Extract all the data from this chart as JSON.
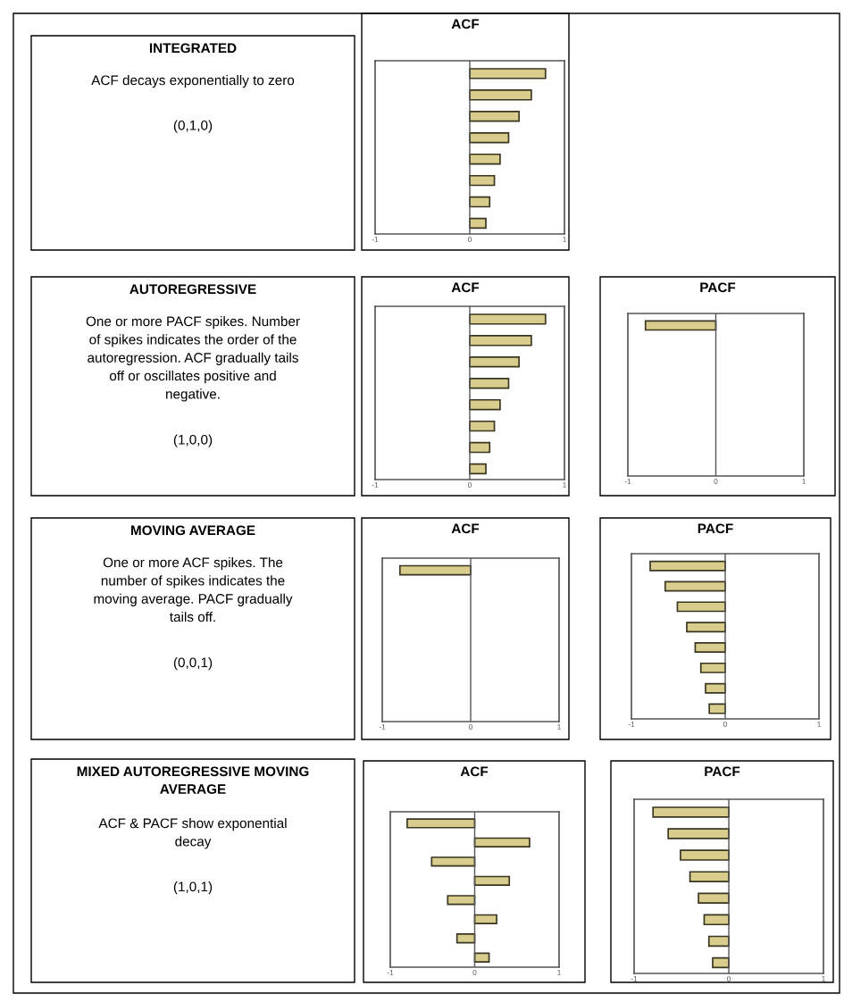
{
  "chart_data": [
    {
      "type": "other",
      "title": "INTEGRATED",
      "annotations": [
        "ACF decays exponentially to zero",
        "(0,1,0)"
      ]
    },
    {
      "type": "bar",
      "orientation": "horizontal",
      "title": "ACF",
      "categories": [
        null,
        null,
        null,
        null,
        null,
        null,
        null,
        null
      ],
      "values": [
        0.8,
        0.65,
        0.52,
        0.41,
        0.32,
        0.26,
        0.21,
        0.17
      ],
      "color": "#d8cd8c",
      "xlim": [
        -1,
        1
      ],
      "xticks": [
        -1,
        0,
        1
      ],
      "ref_lines": [
        {
          "axis": "x",
          "value": 0,
          "color": "#555555"
        }
      ],
      "grid": false
    },
    {
      "type": "other",
      "title": "AUTOREGRESSIVE",
      "annotations": [
        "One or more PACF spikes. Number\nof spikes indicates the order of the\nautoregression. ACF gradually tails\noff or oscillates positive and\nnegative.",
        "(1,0,0)"
      ]
    },
    {
      "type": "bar",
      "orientation": "horizontal",
      "title": "ACF",
      "categories": [
        null,
        null,
        null,
        null,
        null,
        null,
        null,
        null
      ],
      "values": [
        0.8,
        0.65,
        0.52,
        0.41,
        0.32,
        0.26,
        0.21,
        0.17
      ],
      "color": "#d8cd8c",
      "xlim": [
        -1,
        1
      ],
      "xticks": [
        -1,
        0,
        1
      ],
      "ref_lines": [
        {
          "axis": "x",
          "value": 0,
          "color": "#555555"
        }
      ],
      "grid": false
    },
    {
      "type": "bar",
      "orientation": "horizontal",
      "title": "PACF",
      "categories": [
        null,
        null,
        null,
        null,
        null,
        null,
        null,
        null
      ],
      "values": [
        -0.8,
        null,
        null,
        null,
        null,
        null,
        null,
        null
      ],
      "color": "#d8cd8c",
      "xlim": [
        -1,
        1
      ],
      "xticks": [
        -1,
        0,
        1
      ],
      "ref_lines": [
        {
          "axis": "x",
          "value": 0,
          "color": "#555555"
        }
      ],
      "grid": false
    },
    {
      "type": "other",
      "title": "MOVING AVERAGE",
      "annotations": [
        "One or more ACF spikes. The\nnumber of spikes indicates the\nmoving average. PACF gradually\ntails off.",
        "(0,0,1)"
      ]
    },
    {
      "type": "bar",
      "orientation": "horizontal",
      "title": "ACF",
      "categories": [
        null,
        null,
        null,
        null,
        null,
        null,
        null,
        null
      ],
      "values": [
        -0.8,
        null,
        null,
        null,
        null,
        null,
        null,
        null
      ],
      "color": "#d8cd8c",
      "xlim": [
        -1,
        1
      ],
      "xticks": [
        -1,
        0,
        1
      ],
      "ref_lines": [
        {
          "axis": "x",
          "value": 0,
          "color": "#555555"
        }
      ],
      "grid": false
    },
    {
      "type": "bar",
      "orientation": "horizontal",
      "title": "PACF",
      "categories": [
        null,
        null,
        null,
        null,
        null,
        null,
        null,
        null
      ],
      "values": [
        -0.8,
        -0.64,
        -0.51,
        -0.41,
        -0.32,
        -0.26,
        -0.21,
        -0.17
      ],
      "color": "#d8cd8c",
      "xlim": [
        -1,
        1
      ],
      "xticks": [
        -1,
        0,
        1
      ],
      "ref_lines": [
        {
          "axis": "x",
          "value": 0,
          "color": "#555555"
        }
      ],
      "grid": false
    },
    {
      "type": "other",
      "title": "MIXED AUTOREGRESSIVE MOVING\nAVERAGE",
      "annotations": [
        "ACF & PACF show exponential\ndecay",
        "(1,0,1)"
      ]
    },
    {
      "type": "bar",
      "orientation": "horizontal",
      "title": "ACF",
      "categories": [
        null,
        null,
        null,
        null,
        null,
        null,
        null,
        null
      ],
      "values": [
        -0.8,
        0.65,
        -0.51,
        0.41,
        -0.32,
        0.26,
        -0.21,
        0.17
      ],
      "color": "#d8cd8c",
      "xlim": [
        -1,
        1
      ],
      "xticks": [
        -1,
        0,
        1
      ],
      "ref_lines": [
        {
          "axis": "x",
          "value": 0,
          "color": "#555555"
        }
      ],
      "grid": false
    },
    {
      "type": "bar",
      "orientation": "horizontal",
      "title": "PACF",
      "categories": [
        null,
        null,
        null,
        null,
        null,
        null,
        null,
        null
      ],
      "values": [
        -0.8,
        -0.64,
        -0.51,
        -0.41,
        -0.32,
        -0.26,
        -0.21,
        -0.17
      ],
      "color": "#d8cd8c",
      "xlim": [
        -1,
        1
      ],
      "xticks": [
        -1,
        0,
        1
      ],
      "ref_lines": [
        {
          "axis": "x",
          "value": 0,
          "color": "#555555"
        }
      ],
      "grid": false
    }
  ]
}
